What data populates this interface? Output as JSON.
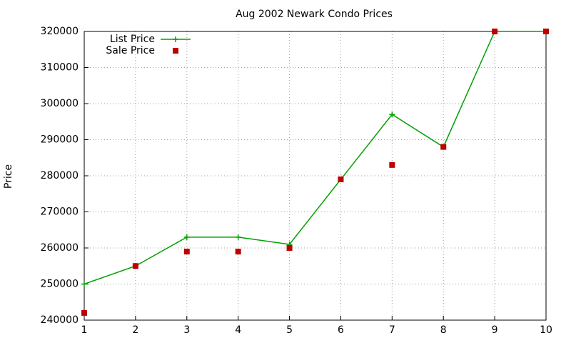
{
  "chart_data": {
    "type": "line",
    "title": "Aug 2002 Newark Condo Prices",
    "y_label": "Price",
    "x": [
      1,
      2,
      3,
      4,
      5,
      6,
      7,
      8,
      9,
      10
    ],
    "series": [
      {
        "name": "List Price",
        "color": "#00a000",
        "line": true,
        "marker": "plus",
        "values": [
          250000,
          255000,
          263000,
          263000,
          261000,
          279000,
          297000,
          288000,
          320000,
          320000
        ]
      },
      {
        "name": "Sale Price",
        "color": "#c00000",
        "line": false,
        "marker": "square",
        "values": [
          242000,
          255000,
          259000,
          259000,
          260000,
          279000,
          283000,
          288000,
          320000,
          320000
        ]
      }
    ],
    "xlim": [
      1,
      10
    ],
    "xticks": [
      1,
      2,
      3,
      4,
      5,
      6,
      7,
      8,
      9,
      10
    ],
    "ylim": [
      240000,
      320000
    ],
    "yticks": [
      240000,
      250000,
      260000,
      270000,
      280000,
      290000,
      300000,
      310000,
      320000
    ],
    "grid": true,
    "legend": "top-left"
  }
}
